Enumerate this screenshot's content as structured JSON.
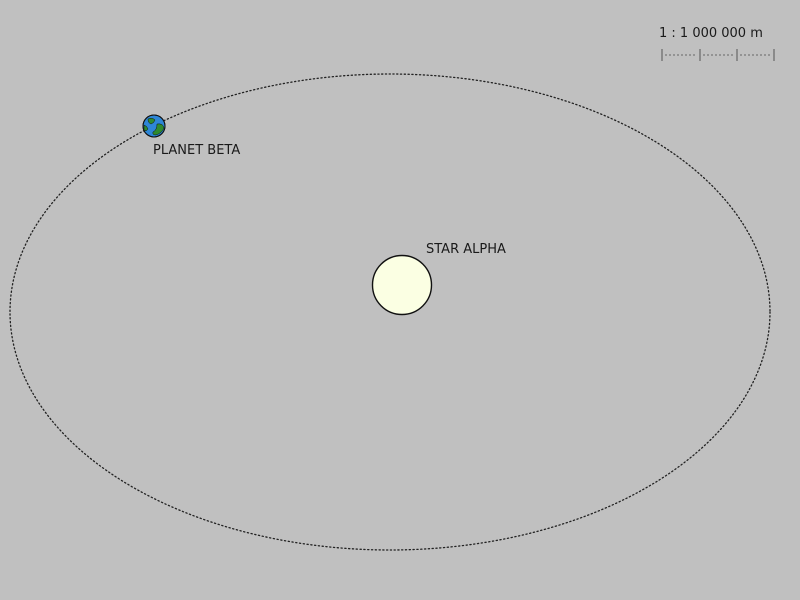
{
  "diagram": {
    "star": {
      "label": "STAR ALPHA",
      "fill": "#fbffe3",
      "stroke": "#111111"
    },
    "planet": {
      "label": "PLANET BETA",
      "ocean_color": "#2e86d6",
      "land_color": "#2f8a2f"
    },
    "orbit": {
      "style": "dotted",
      "color": "#222222"
    },
    "scale": {
      "text": "1 : 1 000 000 m",
      "segments": 3
    },
    "background": "#c0c0c0"
  }
}
